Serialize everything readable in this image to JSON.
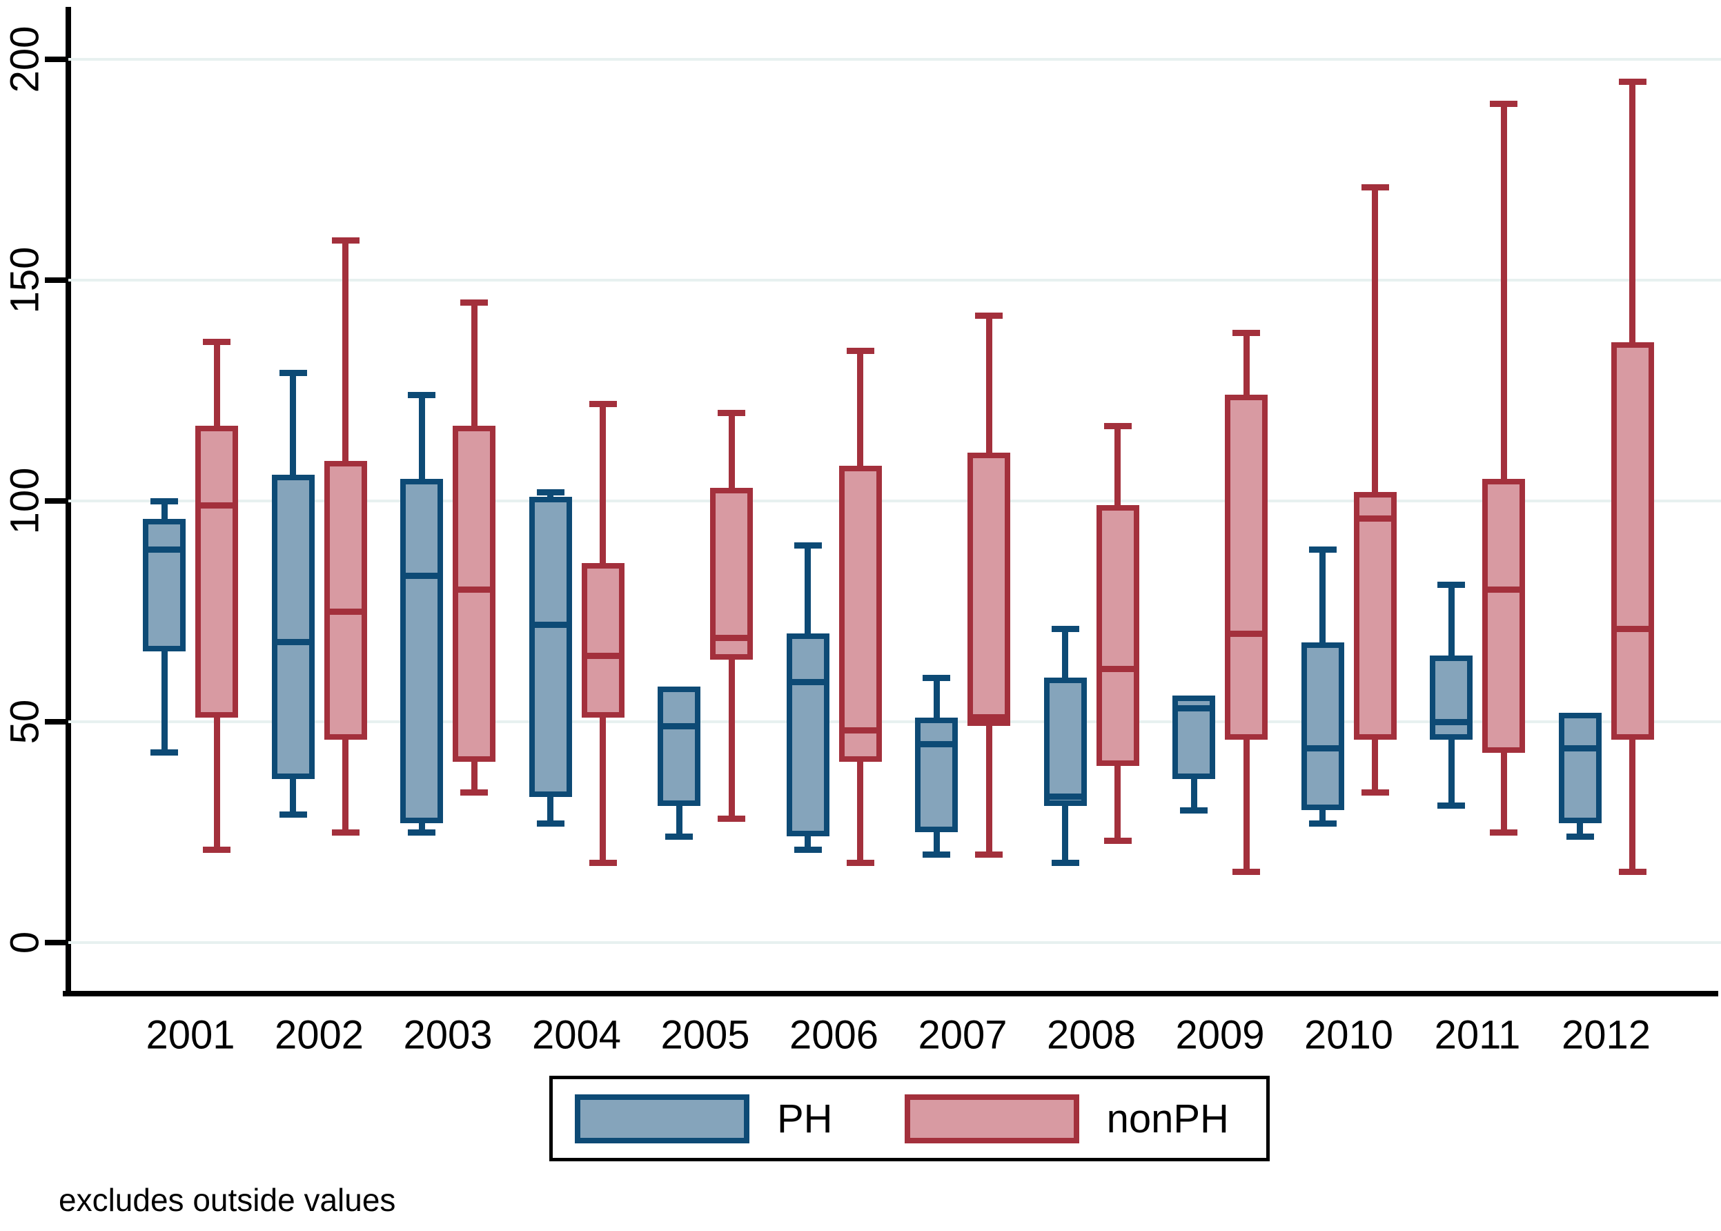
{
  "note": "excludes outside values",
  "y_axis": {
    "tick_labels": [
      "0",
      "50",
      "100",
      "150",
      "200"
    ],
    "tick_values": [
      0,
      50,
      100,
      150,
      200
    ]
  },
  "x_axis": {
    "labels": [
      "2001",
      "2002",
      "2003",
      "2004",
      "2005",
      "2006",
      "2007",
      "2008",
      "2009",
      "2010",
      "2011",
      "2012"
    ]
  },
  "legend": {
    "items": [
      {
        "label": "PH",
        "fill": "#85a4bb",
        "border": "#0d4a75"
      },
      {
        "label": "nonPH",
        "fill": "#d89aa2",
        "border": "#a3303c"
      }
    ]
  },
  "colors": {
    "ph_fill": "#85a4bb",
    "ph_border": "#0d4a75",
    "nonph_fill": "#d89aa2",
    "nonph_border": "#a3303c",
    "gridline": "#e7f1f0",
    "axis": "#000000"
  },
  "chart_data": {
    "type": "box",
    "title": "",
    "xlabel": "",
    "ylabel": "",
    "ylim": [
      0,
      200
    ],
    "grid": true,
    "legend_position": "bottom",
    "note": "excludes outside values",
    "categories": [
      "2001",
      "2002",
      "2003",
      "2004",
      "2005",
      "2006",
      "2007",
      "2008",
      "2009",
      "2010",
      "2011",
      "2012"
    ],
    "series": [
      {
        "name": "PH",
        "values": [
          {
            "low": 43,
            "q1": 66,
            "median": 89,
            "q3": 96,
            "high": 100
          },
          {
            "low": 29,
            "q1": 37,
            "median": 68,
            "q3": 106,
            "high": 129
          },
          {
            "low": 25,
            "q1": 27,
            "median": 83,
            "q3": 105,
            "high": 124
          },
          {
            "low": 27,
            "q1": 33,
            "median": 72,
            "q3": 101,
            "high": 102
          },
          {
            "low": 24,
            "q1": 31,
            "median": 49,
            "q3": 58,
            "high": 58
          },
          {
            "low": 21,
            "q1": 24,
            "median": 59,
            "q3": 70,
            "high": 90
          },
          {
            "low": 20,
            "q1": 25,
            "median": 45,
            "q3": 51,
            "high": 60
          },
          {
            "low": 18,
            "q1": 31,
            "median": 33,
            "q3": 60,
            "high": 71
          },
          {
            "low": 30,
            "q1": 37,
            "median": 53,
            "q3": 56,
            "high": 56
          },
          {
            "low": 27,
            "q1": 30,
            "median": 44,
            "q3": 68,
            "high": 89
          },
          {
            "low": 31,
            "q1": 46,
            "median": 50,
            "q3": 65,
            "high": 81
          },
          {
            "low": 24,
            "q1": 27,
            "median": 44,
            "q3": 52,
            "high": 52
          }
        ]
      },
      {
        "name": "nonPH",
        "values": [
          {
            "low": 21,
            "q1": 51,
            "median": 99,
            "q3": 117,
            "high": 136
          },
          {
            "low": 25,
            "q1": 46,
            "median": 75,
            "q3": 109,
            "high": 159
          },
          {
            "low": 34,
            "q1": 41,
            "median": 80,
            "q3": 117,
            "high": 145
          },
          {
            "low": 18,
            "q1": 51,
            "median": 65,
            "q3": 86,
            "high": 122
          },
          {
            "low": 28,
            "q1": 64,
            "median": 69,
            "q3": 103,
            "high": 120
          },
          {
            "low": 18,
            "q1": 41,
            "median": 48,
            "q3": 108,
            "high": 134
          },
          {
            "low": 20,
            "q1": 49,
            "median": 51,
            "q3": 111,
            "high": 142
          },
          {
            "low": 23,
            "q1": 40,
            "median": 62,
            "q3": 99,
            "high": 117
          },
          {
            "low": 16,
            "q1": 46,
            "median": 70,
            "q3": 124,
            "high": 138
          },
          {
            "low": 34,
            "q1": 46,
            "median": 96,
            "q3": 102,
            "high": 171
          },
          {
            "low": 25,
            "q1": 43,
            "median": 80,
            "q3": 105,
            "high": 190
          },
          {
            "low": 16,
            "q1": 46,
            "median": 71,
            "q3": 136,
            "high": 195
          }
        ]
      }
    ]
  }
}
